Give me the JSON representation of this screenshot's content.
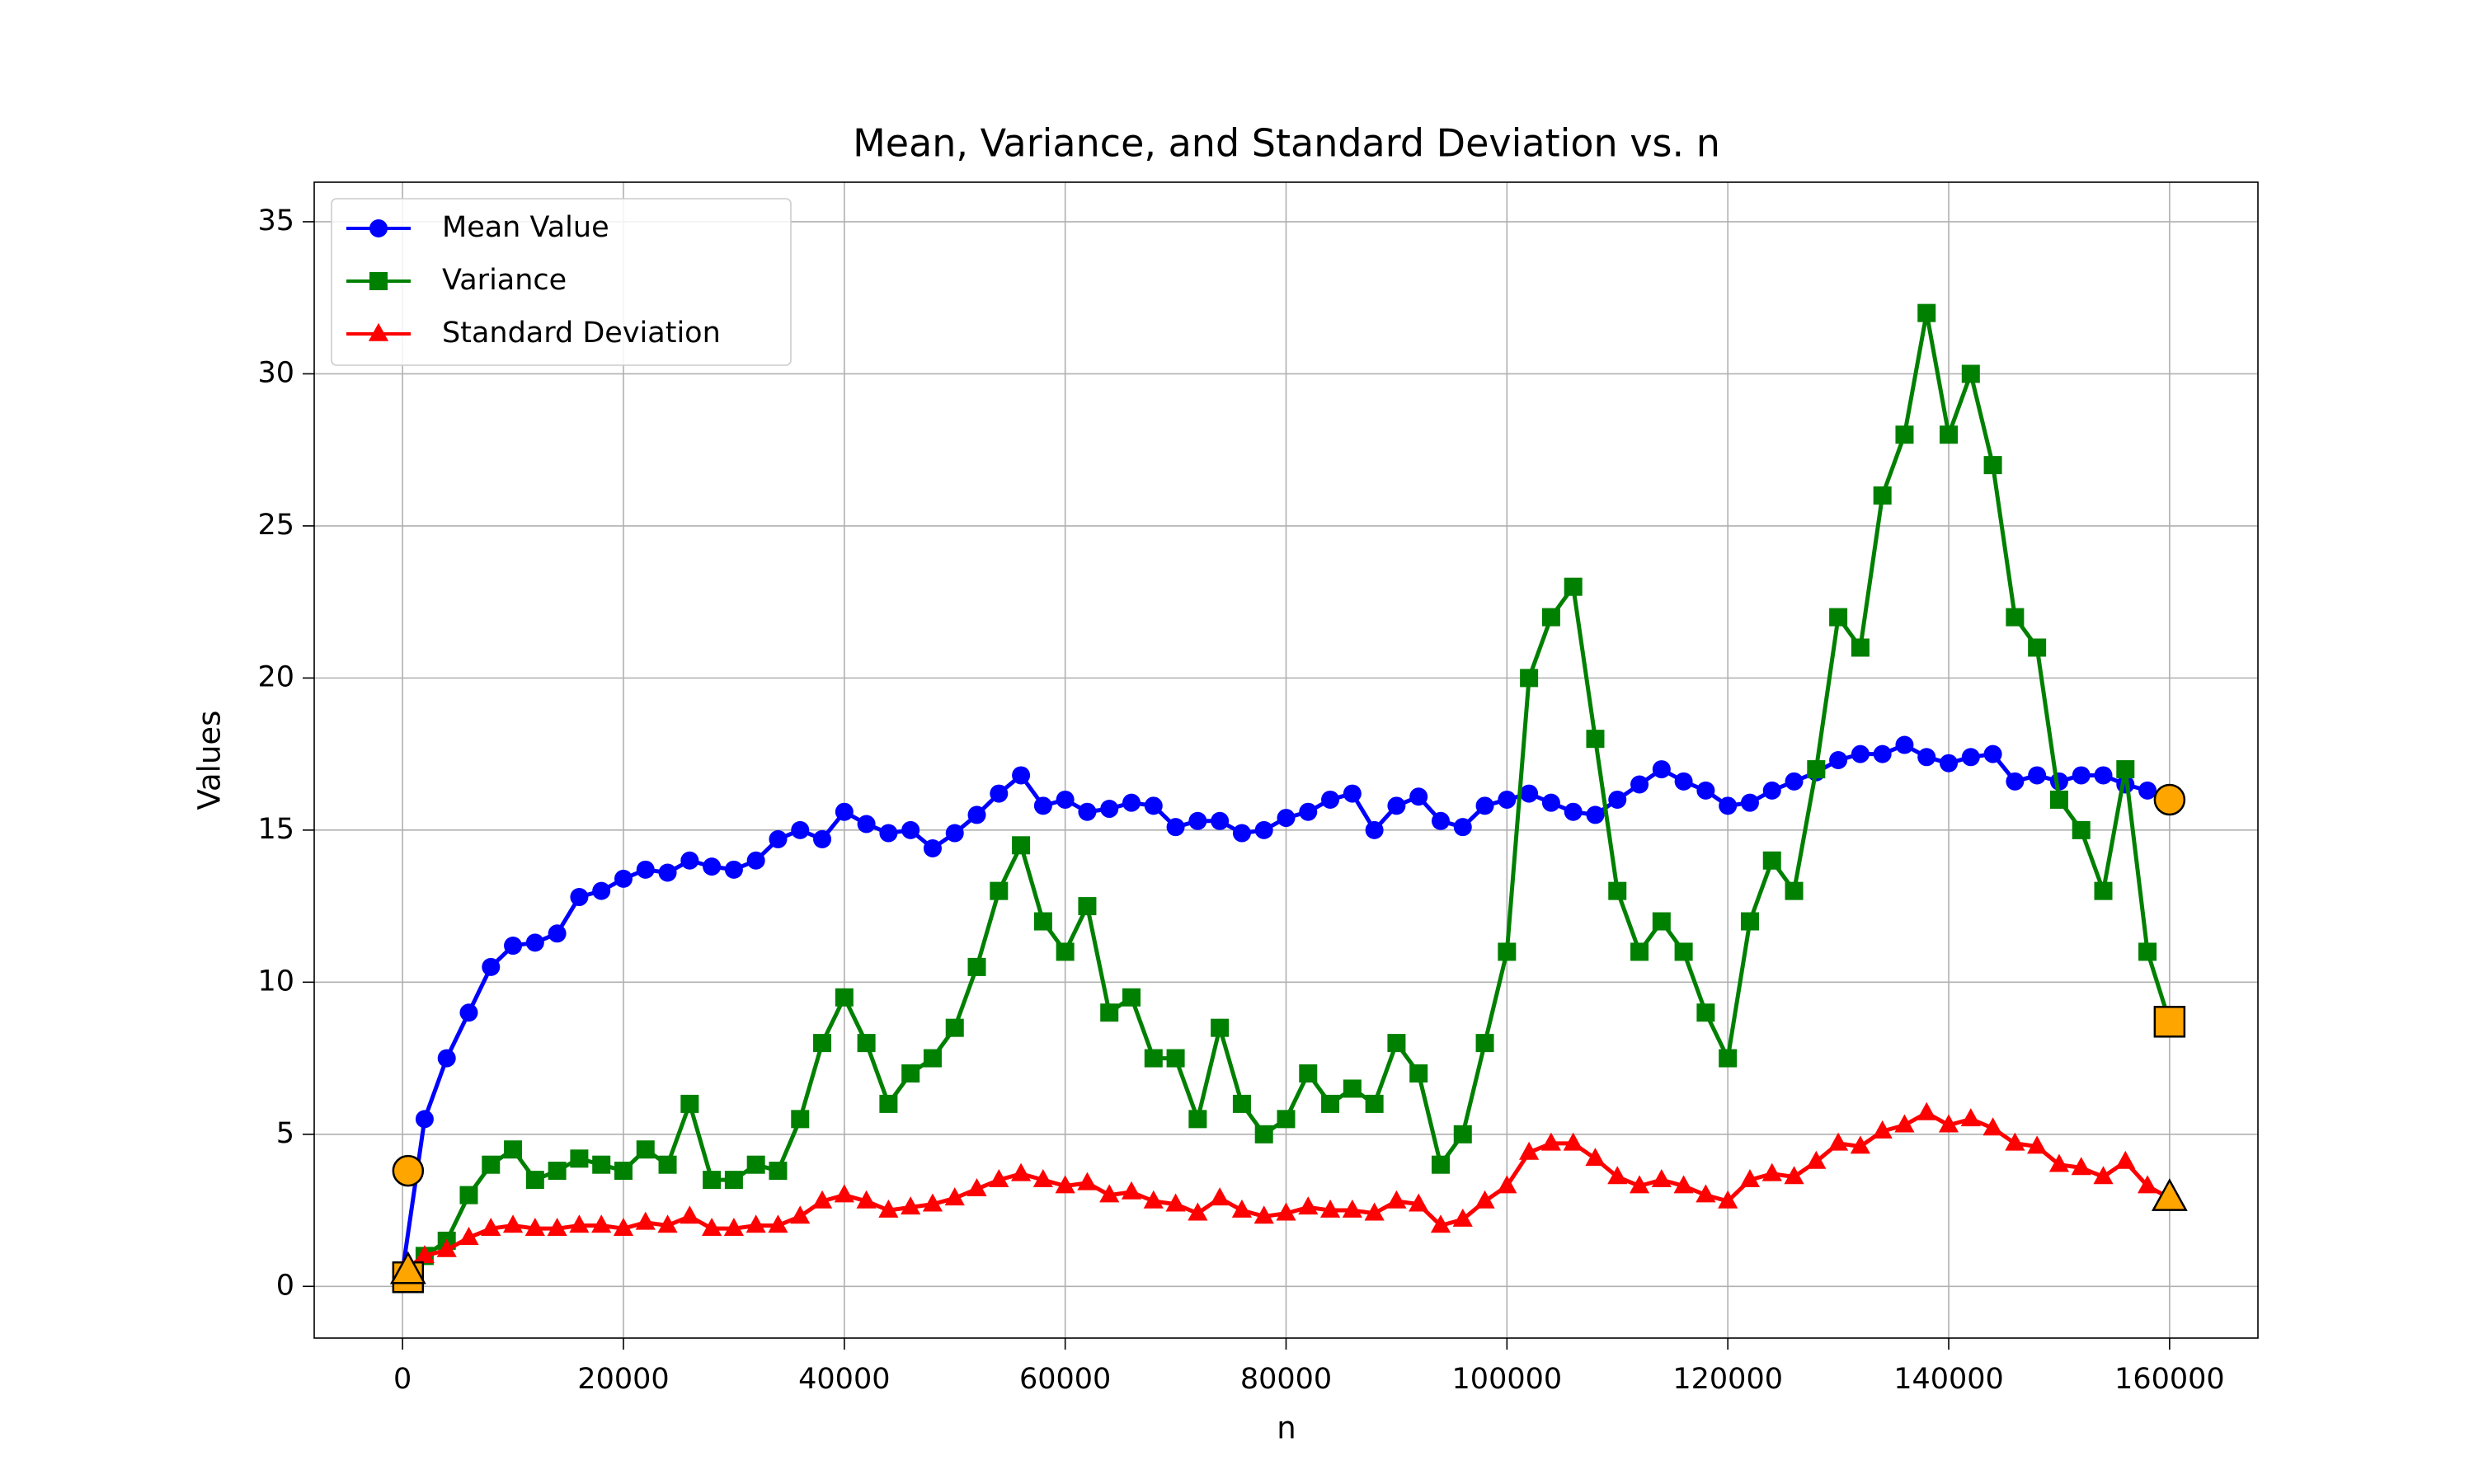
{
  "chart_data": {
    "type": "line",
    "title": "Mean, Variance, and Standard Deviation vs. n",
    "x_label": "n",
    "y_label": "Values",
    "x": [
      0,
      2000,
      4000,
      6000,
      8000,
      10000,
      12000,
      14000,
      16000,
      18000,
      20000,
      22000,
      24000,
      26000,
      28000,
      30000,
      32000,
      34000,
      36000,
      38000,
      40000,
      42000,
      44000,
      46000,
      48000,
      50000,
      52000,
      54000,
      56000,
      58000,
      60000,
      62000,
      64000,
      66000,
      68000,
      70000,
      72000,
      74000,
      76000,
      78000,
      80000,
      82000,
      84000,
      86000,
      88000,
      90000,
      92000,
      94000,
      96000,
      98000,
      100000,
      102000,
      104000,
      106000,
      108000,
      110000,
      112000,
      114000,
      116000,
      118000,
      120000,
      122000,
      124000,
      126000,
      128000,
      130000,
      132000,
      134000,
      136000,
      138000,
      140000,
      142000,
      144000,
      146000,
      148000,
      150000,
      152000,
      154000,
      156000,
      158000,
      160000
    ],
    "series": [
      {
        "name": "Mean Value",
        "color": "#0000ff",
        "marker": "circle",
        "values": [
          0.5,
          5.5,
          7.5,
          9,
          10.5,
          11.2,
          11.3,
          11.6,
          12.8,
          13,
          13.4,
          13.7,
          13.6,
          14,
          13.8,
          13.7,
          14,
          14.7,
          15,
          14.7,
          15.6,
          15.2,
          14.9,
          15,
          14.4,
          14.9,
          15.5,
          16.2,
          16.8,
          15.8,
          16,
          15.6,
          15.7,
          15.9,
          15.8,
          15.1,
          15.3,
          15.3,
          14.9,
          15,
          15.4,
          15.6,
          16,
          16.2,
          15,
          15.8,
          16.1,
          15.3,
          15.1,
          15.8,
          16,
          16.2,
          15.9,
          15.6,
          15.5,
          16,
          16.5,
          17,
          16.6,
          16.3,
          15.8,
          15.9,
          16.3,
          16.6,
          16.9,
          17.3,
          17.5,
          17.5,
          17.8,
          17.4,
          17.2,
          17.4,
          17.5,
          16.6,
          16.8,
          16.6,
          16.8,
          16.8,
          16.5,
          16.3,
          16
        ]
      },
      {
        "name": "Variance",
        "color": "#008000",
        "marker": "square",
        "values": [
          0.3,
          1,
          1.5,
          3,
          4,
          4.5,
          3.5,
          3.8,
          4.2,
          4,
          3.8,
          4.5,
          4,
          6,
          3.5,
          3.5,
          4,
          3.8,
          5.5,
          8,
          9.5,
          8,
          6,
          7,
          7.5,
          8.5,
          10.5,
          13,
          14.5,
          12,
          11,
          12.5,
          9,
          9.5,
          7.5,
          7.5,
          5.5,
          8.5,
          6,
          5,
          5.5,
          7,
          6,
          6.5,
          6,
          8,
          7,
          4,
          5,
          8,
          11,
          20,
          22,
          23,
          18,
          13,
          11,
          12,
          11,
          9,
          7.5,
          12,
          14,
          13,
          17,
          22,
          21,
          26,
          28,
          32,
          28,
          30,
          27,
          22,
          21,
          16,
          15,
          13,
          17,
          11,
          8.7
        ]
      },
      {
        "name": "Standard Deviation",
        "color": "#ff0000",
        "marker": "triangle",
        "values": [
          0.5,
          1,
          1.2,
          1.6,
          1.9,
          2,
          1.9,
          1.9,
          2,
          2,
          1.9,
          2.1,
          2,
          2.3,
          1.9,
          1.9,
          2,
          2,
          2.3,
          2.8,
          3,
          2.8,
          2.5,
          2.6,
          2.7,
          2.9,
          3.2,
          3.5,
          3.7,
          3.5,
          3.3,
          3.4,
          3,
          3.1,
          2.8,
          2.7,
          2.4,
          2.9,
          2.5,
          2.3,
          2.4,
          2.6,
          2.5,
          2.5,
          2.4,
          2.8,
          2.7,
          2,
          2.2,
          2.8,
          3.3,
          4.4,
          4.7,
          4.7,
          4.2,
          3.6,
          3.3,
          3.5,
          3.3,
          3,
          2.8,
          3.5,
          3.7,
          3.6,
          4.1,
          4.7,
          4.6,
          5.1,
          5.3,
          5.7,
          5.3,
          5.5,
          5.2,
          4.7,
          4.6,
          4,
          3.9,
          3.6,
          4.1,
          3.3,
          2.9
        ]
      }
    ],
    "highlights": [
      {
        "x": 500,
        "y": 3.8,
        "marker": "circle"
      },
      {
        "x": 500,
        "y": 0.3,
        "marker": "square"
      },
      {
        "x": 500,
        "y": 0.5,
        "marker": "triangle"
      },
      {
        "x": 160000,
        "y": 16,
        "marker": "circle"
      },
      {
        "x": 160000,
        "y": 8.7,
        "marker": "square"
      },
      {
        "x": 160000,
        "y": 2.9,
        "marker": "triangle"
      }
    ],
    "highlight_color": "#ffa500",
    "xlim": [
      -8000,
      168000
    ],
    "xticks": [
      0,
      20000,
      40000,
      60000,
      80000,
      100000,
      120000,
      140000,
      160000
    ],
    "ylim": [
      -1.7,
      36.3
    ],
    "yticks": [
      0,
      5,
      10,
      15,
      20,
      25,
      30,
      35
    ],
    "grid": true,
    "legend": "upper left"
  }
}
